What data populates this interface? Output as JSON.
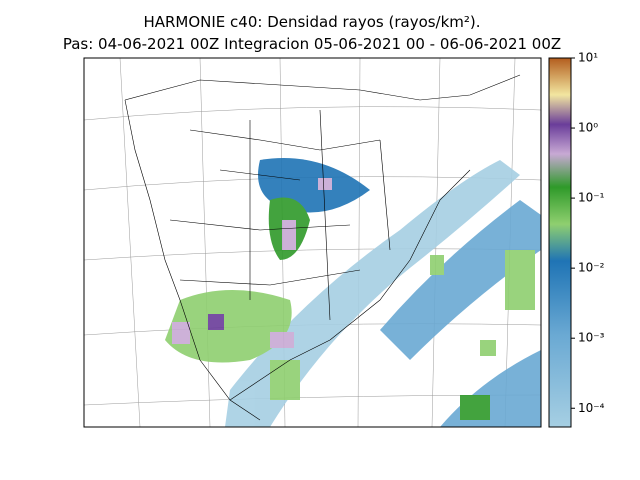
{
  "chart_data": {
    "type": "map",
    "title": "HARMONIE c40: Densidad rayos  (rayos/km²).",
    "subtitle": "Pas: 04-06-2021 00Z Integracion 05-06-2021 00 - 06-06-2021 00Z",
    "colorbar": {
      "log_scale": true,
      "lim": [
        5.4e-05,
        10
      ],
      "ticks": [
        {
          "value": 10,
          "label": "10¹"
        },
        {
          "value": 1,
          "label": "10⁰"
        },
        {
          "value": 0.1,
          "label": "10⁻¹"
        },
        {
          "value": 0.01,
          "label": "10⁻²"
        },
        {
          "value": 0.001,
          "label": "10⁻³"
        },
        {
          "value": 0.0001,
          "label": "10⁻⁴"
        }
      ]
    }
  }
}
